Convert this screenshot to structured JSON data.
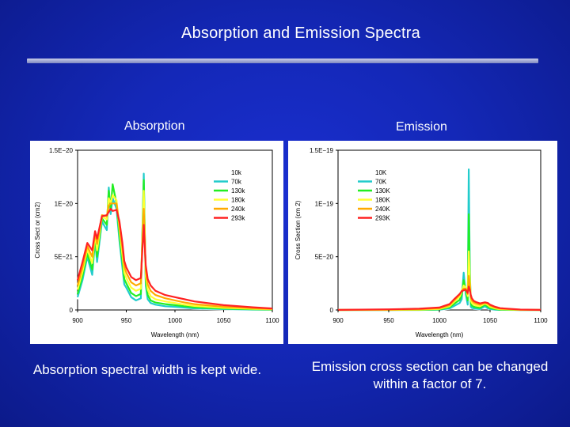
{
  "slide": {
    "title": "Absorption and Emission Spectra",
    "caption_left": "Absorption spectral width is kept wide.",
    "caption_right_line1": "Emission cross section can be changed",
    "caption_right_line2": "within a factor of 7."
  },
  "panels": {
    "left_label": "Absorption",
    "right_label": "Emission"
  },
  "colors": {
    "background": "#1428b8",
    "10k": "#ffffff",
    "70k": "#22cccc",
    "130k": "#22ee22",
    "180k": "#ffff33",
    "240k": "#ffaa00",
    "293k": "#ff2222"
  },
  "chart_data": [
    {
      "type": "line",
      "title": "",
      "xlabel": "Wavelength (nm)",
      "ylabel": "Cross Sect or (cm2)",
      "xlim": [
        900,
        1100
      ],
      "ylim": [
        0,
        1.5e-20
      ],
      "xticks": [
        900,
        950,
        1000,
        1050,
        1100
      ],
      "xtick_labels": [
        "900",
        "950",
        "1000",
        "1050",
        "1100"
      ],
      "yticks": [
        0,
        5e-21,
        1e-20,
        1.5e-20
      ],
      "ytick_labels": [
        "0",
        "5E−21",
        "1E−20",
        "1.5E−20"
      ],
      "legend_position": "top-right",
      "grid": false,
      "series": [
        {
          "name": "10k",
          "color": "#ffffff",
          "x": [
            900,
            905,
            910,
            915,
            918,
            920,
            925,
            930,
            932,
            934,
            936,
            940,
            943,
            946,
            948,
            950,
            955,
            960,
            965,
            968,
            970,
            972,
            975,
            980,
            990,
            1000,
            1010,
            1020,
            1050,
            1080,
            1100
          ],
          "y": [
            1e-21,
            2.5e-21,
            4.8e-21,
            3e-21,
            6e-21,
            4e-21,
            8e-21,
            7e-21,
            1.08e-20,
            8.5e-21,
            1.12e-20,
            9e-21,
            6e-21,
            3.5e-21,
            2e-21,
            1.8e-21,
            9e-22,
            7e-22,
            9e-22,
            1.32e-20,
            2e-21,
            8e-22,
            4.5e-22,
            3.5e-22,
            2.5e-22,
            2e-22,
            1.5e-22,
            1e-22,
            5e-23,
            2e-23,
            1e-23
          ]
        },
        {
          "name": "70k",
          "color": "#22cccc",
          "x": [
            900,
            905,
            910,
            915,
            918,
            920,
            925,
            930,
            932,
            934,
            936,
            940,
            943,
            946,
            948,
            950,
            955,
            960,
            965,
            968,
            970,
            972,
            975,
            980,
            990,
            1000,
            1010,
            1020,
            1050,
            1080,
            1100
          ],
          "y": [
            1.2e-21,
            2.8e-21,
            5e-21,
            3.3e-21,
            6.5e-21,
            4.5e-21,
            8.3e-21,
            7.5e-21,
            1.15e-20,
            9e-21,
            1.05e-20,
            9.5e-21,
            6.5e-21,
            4e-21,
            2.4e-21,
            2.1e-21,
            1.2e-21,
            9e-22,
            1.1e-21,
            1.28e-20,
            2.3e-21,
            1e-21,
            6.5e-22,
            5e-22,
            3.5e-22,
            3e-22,
            2.2e-22,
            1.5e-22,
            8e-23,
            4e-23,
            2e-23
          ]
        },
        {
          "name": "130k",
          "color": "#22ee22",
          "x": [
            900,
            905,
            910,
            915,
            918,
            920,
            925,
            930,
            932,
            934,
            936,
            940,
            943,
            946,
            948,
            950,
            955,
            960,
            965,
            968,
            970,
            972,
            975,
            980,
            990,
            1000,
            1010,
            1020,
            1050,
            1080,
            1100
          ],
          "y": [
            1.5e-21,
            3.2e-21,
            5.3e-21,
            3.8e-21,
            6.8e-21,
            5e-21,
            8.6e-21,
            8e-21,
            1.12e-20,
            9.5e-21,
            1.18e-20,
            1e-20,
            7e-21,
            4.6e-21,
            2.9e-21,
            2.5e-21,
            1.6e-21,
            1.3e-21,
            1.5e-21,
            1.22e-20,
            2.7e-21,
            1.4e-21,
            9e-22,
            7e-22,
            5.5e-22,
            4.5e-22,
            3.5e-22,
            2.5e-22,
            1.3e-22,
            7e-23,
            4e-23
          ]
        },
        {
          "name": "180k",
          "color": "#ffff33",
          "x": [
            900,
            905,
            910,
            915,
            918,
            920,
            925,
            930,
            932,
            934,
            936,
            940,
            943,
            946,
            948,
            950,
            955,
            960,
            965,
            968,
            970,
            972,
            975,
            980,
            990,
            1000,
            1010,
            1020,
            1050,
            1080,
            1100
          ],
          "y": [
            1.9e-21,
            3.6e-21,
            5.7e-21,
            4.4e-21,
            7.1e-21,
            5.6e-21,
            8.8e-21,
            8.5e-21,
            1.05e-20,
            1e-20,
            1.08e-20,
            1.03e-20,
            7.6e-21,
            5.2e-21,
            3.5e-21,
            3e-21,
            2.1e-21,
            1.8e-21,
            2e-21,
            1.12e-20,
            3.2e-21,
            1.9e-21,
            1.3e-21,
            1e-21,
            8e-22,
            6.5e-22,
            5e-22,
            3.8e-22,
            2e-22,
            1.1e-22,
            6e-23
          ]
        },
        {
          "name": "240k",
          "color": "#ffaa00",
          "x": [
            900,
            905,
            910,
            915,
            918,
            920,
            925,
            930,
            932,
            934,
            936,
            940,
            943,
            946,
            948,
            950,
            955,
            960,
            965,
            968,
            970,
            972,
            975,
            980,
            990,
            1000,
            1010,
            1020,
            1050,
            1080,
            1100
          ],
          "y": [
            2.3e-21,
            4e-21,
            6e-21,
            5e-21,
            7.3e-21,
            6.2e-21,
            8.9e-21,
            8.8e-21,
            9.8e-21,
            1e-20,
            1e-20,
            1e-20,
            8e-21,
            5.8e-21,
            4.1e-21,
            3.5e-21,
            2.6e-21,
            2.3e-21,
            2.5e-21,
            9.5e-21,
            3.7e-21,
            2.4e-21,
            1.8e-21,
            1.4e-21,
            1.1e-21,
            9e-22,
            7e-22,
            5.5e-22,
            3e-22,
            1.6e-22,
            9e-23
          ]
        },
        {
          "name": "293k",
          "color": "#ff2222",
          "x": [
            900,
            905,
            910,
            915,
            918,
            920,
            925,
            930,
            932,
            934,
            936,
            940,
            943,
            946,
            948,
            950,
            955,
            960,
            965,
            968,
            970,
            972,
            975,
            980,
            990,
            1000,
            1010,
            1020,
            1050,
            1080,
            1100
          ],
          "y": [
            2.8e-21,
            4.5e-21,
            6.3e-21,
            5.6e-21,
            7.4e-21,
            6.7e-21,
            8.8e-21,
            8.9e-21,
            9.2e-21,
            9.5e-21,
            9.3e-21,
            9.4e-21,
            8.3e-21,
            6.3e-21,
            4.6e-21,
            4e-21,
            3.1e-21,
            2.8e-21,
            3e-21,
            8e-21,
            4.2e-21,
            2.9e-21,
            2.3e-21,
            1.8e-21,
            1.4e-21,
            1.2e-21,
            1e-21,
            8e-22,
            4.5e-22,
            2.5e-22,
            1.4e-22
          ]
        }
      ]
    },
    {
      "type": "line",
      "title": "",
      "xlabel": "Wavelength (nm)",
      "ylabel": "Cross Section (cm 2)",
      "xlim": [
        900,
        1100
      ],
      "ylim": [
        0,
        1.5e-19
      ],
      "xticks": [
        900,
        950,
        1000,
        1050,
        1100
      ],
      "xtick_labels": [
        "900",
        "950",
        "1000",
        "1050",
        "1100"
      ],
      "yticks": [
        0,
        5e-20,
        1e-19,
        1.5e-19
      ],
      "ytick_labels": [
        "0",
        "5E−20",
        "1E−19",
        "1.5E−19"
      ],
      "legend_position": "top-right",
      "grid": false,
      "series": [
        {
          "name": "10K",
          "color": "#ffffff",
          "x": [
            900,
            950,
            980,
            1000,
            1010,
            1015,
            1020,
            1022,
            1024,
            1026,
            1028,
            1029,
            1030,
            1031,
            1032,
            1034,
            1036,
            1040,
            1045,
            1048,
            1050,
            1055,
            1060,
            1080,
            1100
          ],
          "y": [
            0,
            0,
            0,
            0,
            1e-21,
            3e-21,
            5e-21,
            8e-21,
            2e-20,
            1e-20,
            3e-21,
            1.4e-19,
            3e-20,
            2e-21,
            1.5e-21,
            1e-21,
            8e-22,
            5e-22,
            3e-21,
            1e-21,
            5e-22,
            2e-22,
            0,
            0,
            0
          ]
        },
        {
          "name": "70K",
          "color": "#22cccc",
          "x": [
            900,
            950,
            980,
            1000,
            1010,
            1015,
            1020,
            1022,
            1024,
            1026,
            1028,
            1029,
            1030,
            1031,
            1032,
            1034,
            1036,
            1040,
            1045,
            1048,
            1050,
            1055,
            1060,
            1080,
            1100
          ],
          "y": [
            0,
            0,
            0,
            2e-22,
            1.5e-21,
            4e-21,
            6.5e-21,
            1e-20,
            3.5e-20,
            1.5e-20,
            5e-21,
            1.32e-19,
            4e-20,
            3e-21,
            2e-21,
            1.5e-21,
            1.2e-21,
            8e-22,
            3.5e-21,
            1.5e-21,
            8e-22,
            3e-22,
            1e-22,
            0,
            0
          ]
        },
        {
          "name": "130K",
          "color": "#22ee22",
          "x": [
            900,
            950,
            980,
            1000,
            1010,
            1015,
            1020,
            1022,
            1024,
            1026,
            1028,
            1029,
            1030,
            1031,
            1032,
            1034,
            1036,
            1040,
            1045,
            1048,
            1050,
            1055,
            1060,
            1080,
            1100
          ],
          "y": [
            0,
            0,
            1e-22,
            5e-22,
            2.5e-21,
            6e-21,
            9.5e-21,
            1.4e-20,
            2.8e-20,
            1.9e-20,
            9e-21,
            9e-20,
            3.5e-20,
            6e-21,
            4e-21,
            3e-21,
            2.5e-21,
            2e-21,
            5e-21,
            3e-21,
            1.8e-21,
            8e-22,
            3e-22,
            0,
            0
          ]
        },
        {
          "name": "180K",
          "color": "#ffff33",
          "x": [
            900,
            950,
            980,
            1000,
            1010,
            1015,
            1020,
            1022,
            1024,
            1026,
            1028,
            1029,
            1030,
            1031,
            1032,
            1034,
            1036,
            1040,
            1045,
            1048,
            1050,
            1055,
            1060,
            1080,
            1100
          ],
          "y": [
            0,
            1e-22,
            3e-22,
            1e-21,
            3.5e-21,
            8e-21,
            1.25e-20,
            1.7e-20,
            2.3e-20,
            2.1e-20,
            1.3e-20,
            5.5e-20,
            3e-20,
            9e-21,
            6.5e-21,
            5e-21,
            4.2e-21,
            3.5e-21,
            6e-21,
            4.5e-21,
            3e-21,
            1.5e-21,
            7e-22,
            1e-22,
            0
          ]
        },
        {
          "name": "240K",
          "color": "#ffaa00",
          "x": [
            900,
            950,
            980,
            1000,
            1010,
            1015,
            1020,
            1022,
            1024,
            1026,
            1028,
            1029,
            1030,
            1031,
            1032,
            1034,
            1036,
            1040,
            1045,
            1048,
            1050,
            1055,
            1060,
            1080,
            1100
          ],
          "y": [
            0,
            3e-22,
            7e-22,
            1.6e-21,
            4.5e-21,
            9.5e-21,
            1.45e-20,
            1.8e-20,
            2e-20,
            2e-20,
            1.5e-20,
            3.2e-20,
            2.4e-20,
            1.2e-20,
            9e-21,
            7e-21,
            6e-21,
            5e-21,
            6.8e-21,
            5.8e-21,
            4.2e-21,
            2.3e-21,
            1.2e-21,
            2e-22,
            0
          ]
        },
        {
          "name": "293K",
          "color": "#ff2222",
          "x": [
            900,
            950,
            980,
            1000,
            1010,
            1015,
            1020,
            1022,
            1024,
            1026,
            1028,
            1029,
            1030,
            1031,
            1032,
            1034,
            1036,
            1040,
            1045,
            1048,
            1050,
            1055,
            1060,
            1080,
            1100
          ],
          "y": [
            1e-22,
            6e-22,
            1.2e-21,
            2.3e-21,
            5.5e-21,
            1.05e-20,
            1.5e-20,
            1.75e-20,
            1.85e-20,
            1.9e-20,
            1.6e-20,
            2.2e-20,
            1.9e-20,
            1.4e-20,
            1.1e-20,
            8.5e-21,
            7.5e-21,
            6.2e-21,
            7.2e-21,
            6.5e-21,
            5e-21,
            3e-21,
            1.7e-21,
            4e-22,
            1e-22
          ]
        }
      ]
    }
  ]
}
